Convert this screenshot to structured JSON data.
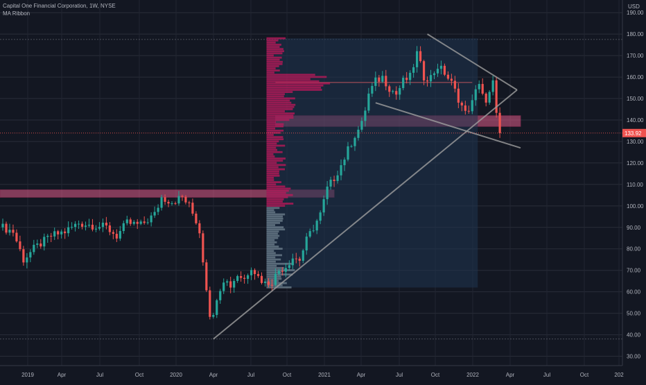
{
  "chart_data": {
    "type": "candlestick",
    "title": "Capital One Financial Corporation, 1W, NYSE",
    "indicator": "MA Ribbon",
    "currency": "USD",
    "ylim": [
      25,
      192
    ],
    "y_ticks": [
      30,
      40,
      50,
      60,
      70,
      80,
      90,
      100,
      110,
      120,
      130,
      140,
      150,
      160,
      170,
      180,
      190
    ],
    "y_tick_labels": [
      "30.00",
      "40.00",
      "50.00",
      "60.00",
      "70.00",
      "80.00",
      "90.00",
      "100.00",
      "110.00",
      "120.00",
      "130.00",
      "140.00",
      "150.00",
      "160.00",
      "170.00",
      "180.00",
      "190.00"
    ],
    "x_tick_labels": [
      "2019",
      "Apr",
      "Jul",
      "Oct",
      "2020",
      "Apr",
      "Jul",
      "Oct",
      "2021",
      "Apr",
      "Jul",
      "Oct",
      "2022",
      "Apr",
      "Jul",
      "Oct",
      "202"
    ],
    "last_price": "133.92",
    "last_price_value": 133.92,
    "up_color": "#26a69a",
    "down_color": "#ef5350",
    "grid": true,
    "anchors": [
      {
        "t": 0,
        "p": 90
      },
      {
        "t": 3,
        "p": 88
      },
      {
        "t": 6,
        "p": 75
      },
      {
        "t": 9,
        "p": 80
      },
      {
        "t": 14,
        "p": 86
      },
      {
        "t": 18,
        "p": 88
      },
      {
        "t": 22,
        "p": 92
      },
      {
        "t": 26,
        "p": 91
      },
      {
        "t": 30,
        "p": 90
      },
      {
        "t": 33,
        "p": 86
      },
      {
        "t": 36,
        "p": 92
      },
      {
        "t": 40,
        "p": 91
      },
      {
        "t": 44,
        "p": 96
      },
      {
        "t": 46,
        "p": 104
      },
      {
        "t": 49,
        "p": 102
      },
      {
        "t": 52,
        "p": 104
      },
      {
        "t": 54,
        "p": 100
      },
      {
        "t": 56,
        "p": 93
      },
      {
        "t": 57,
        "p": 88
      },
      {
        "t": 58,
        "p": 75
      },
      {
        "t": 59,
        "p": 62
      },
      {
        "t": 60,
        "p": 50
      },
      {
        "t": 61,
        "p": 48
      },
      {
        "t": 62,
        "p": 58
      },
      {
        "t": 64,
        "p": 66
      },
      {
        "t": 66,
        "p": 63
      },
      {
        "t": 68,
        "p": 68
      },
      {
        "t": 70,
        "p": 66
      },
      {
        "t": 72,
        "p": 72
      },
      {
        "t": 74,
        "p": 67
      },
      {
        "t": 76,
        "p": 64
      },
      {
        "t": 78,
        "p": 65
      },
      {
        "t": 80,
        "p": 70
      },
      {
        "t": 82,
        "p": 72
      },
      {
        "t": 84,
        "p": 76
      },
      {
        "t": 86,
        "p": 75
      },
      {
        "t": 88,
        "p": 84
      },
      {
        "t": 90,
        "p": 90
      },
      {
        "t": 92,
        "p": 96
      },
      {
        "t": 94,
        "p": 108
      },
      {
        "t": 96,
        "p": 113
      },
      {
        "t": 98,
        "p": 119
      },
      {
        "t": 100,
        "p": 126
      },
      {
        "t": 102,
        "p": 133
      },
      {
        "t": 104,
        "p": 138
      },
      {
        "t": 106,
        "p": 152
      },
      {
        "t": 108,
        "p": 158
      },
      {
        "t": 110,
        "p": 160
      },
      {
        "t": 112,
        "p": 155
      },
      {
        "t": 114,
        "p": 152
      },
      {
        "t": 116,
        "p": 158
      },
      {
        "t": 118,
        "p": 160
      },
      {
        "t": 120,
        "p": 171
      },
      {
        "t": 122,
        "p": 160
      },
      {
        "t": 124,
        "p": 160
      },
      {
        "t": 126,
        "p": 165
      },
      {
        "t": 128,
        "p": 162
      },
      {
        "t": 130,
        "p": 157
      },
      {
        "t": 132,
        "p": 150
      },
      {
        "t": 134,
        "p": 143
      },
      {
        "t": 136,
        "p": 148
      },
      {
        "t": 138,
        "p": 158
      },
      {
        "t": 140,
        "p": 147
      },
      {
        "t": 142,
        "p": 157
      },
      {
        "t": 143,
        "p": 145
      },
      {
        "t": 144,
        "p": 133
      }
    ],
    "annotations": {
      "zones": [
        {
          "label": "support-zone-105",
          "t_start": -1,
          "t_end": 96,
          "low": 104,
          "high": 107.5
        },
        {
          "label": "support-zone-139",
          "t_start": 79,
          "t_end": 150,
          "low": 137,
          "high": 142
        }
      ],
      "horizontal_lines": [
        {
          "label": "resistance-157",
          "t_start": 79,
          "t_end": 136,
          "price": 157.5
        }
      ],
      "lines": [
        {
          "label": "rising-trendline",
          "t1": 61,
          "p1": 38,
          "t2": 149,
          "p2": 154
        },
        {
          "label": "falling-trendline",
          "t1": 123,
          "p1": 180,
          "t2": 149,
          "p2": 154
        },
        {
          "label": "lower-channel-line",
          "t1": 108,
          "p1": 148,
          "t2": 150,
          "p2": 127
        }
      ],
      "volume_profile": {
        "t_start": 76,
        "t_end": 136,
        "low": 62,
        "high": 178
      }
    }
  }
}
